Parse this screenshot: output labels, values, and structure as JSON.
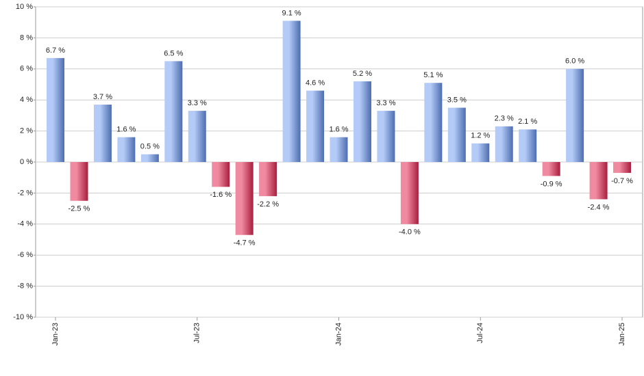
{
  "chart_data": {
    "type": "bar",
    "categories": [
      "Jan-23",
      null,
      null,
      null,
      null,
      null,
      "Jul-23",
      null,
      null,
      null,
      null,
      null,
      "Jan-24",
      null,
      null,
      null,
      null,
      null,
      "Jul-24",
      null,
      null,
      null,
      null,
      null,
      "Jan-25"
    ],
    "values": [
      6.7,
      -2.5,
      3.7,
      1.6,
      0.5,
      6.5,
      3.3,
      -1.6,
      -4.7,
      -2.2,
      9.1,
      4.6,
      1.6,
      5.2,
      3.3,
      -4.0,
      5.1,
      3.5,
      1.2,
      2.3,
      2.1,
      -0.9,
      6.0,
      -2.4,
      -0.7
    ],
    "value_labels": [
      "6.7 %",
      "-2.5 %",
      "3.7 %",
      "1.6 %",
      "0.5 %",
      "6.5 %",
      "3.3 %",
      "-1.6 %",
      "-4.7 %",
      "-2.2 %",
      "9.1 %",
      "4.6 %",
      "1.6 %",
      "5.2 %",
      "3.3 %",
      "-4.0 %",
      "5.1 %",
      "3.5 %",
      "1.2 %",
      "2.3 %",
      "2.1 %",
      "-0.9 %",
      "6.0 %",
      "-2.4 %",
      "-0.7 %"
    ],
    "ylim": [
      -10,
      10
    ],
    "yticks": [
      {
        "value": -10,
        "label": "-10 %"
      },
      {
        "value": -8,
        "label": "-8 %"
      },
      {
        "value": -6,
        "label": "-6 %"
      },
      {
        "value": -4,
        "label": "-4 %"
      },
      {
        "value": -2,
        "label": "-2 %"
      },
      {
        "value": 0,
        "label": "0 %"
      },
      {
        "value": 2,
        "label": "2 %"
      },
      {
        "value": 4,
        "label": "4 %"
      },
      {
        "value": 6,
        "label": "6 %"
      },
      {
        "value": 8,
        "label": "8 %"
      },
      {
        "value": 10,
        "label": "10 %"
      }
    ],
    "grid": true,
    "positive_color": [
      "#b4cbf7",
      "#4d6db0"
    ],
    "negative_color": [
      "#f08aa0",
      "#a81e3e"
    ]
  }
}
